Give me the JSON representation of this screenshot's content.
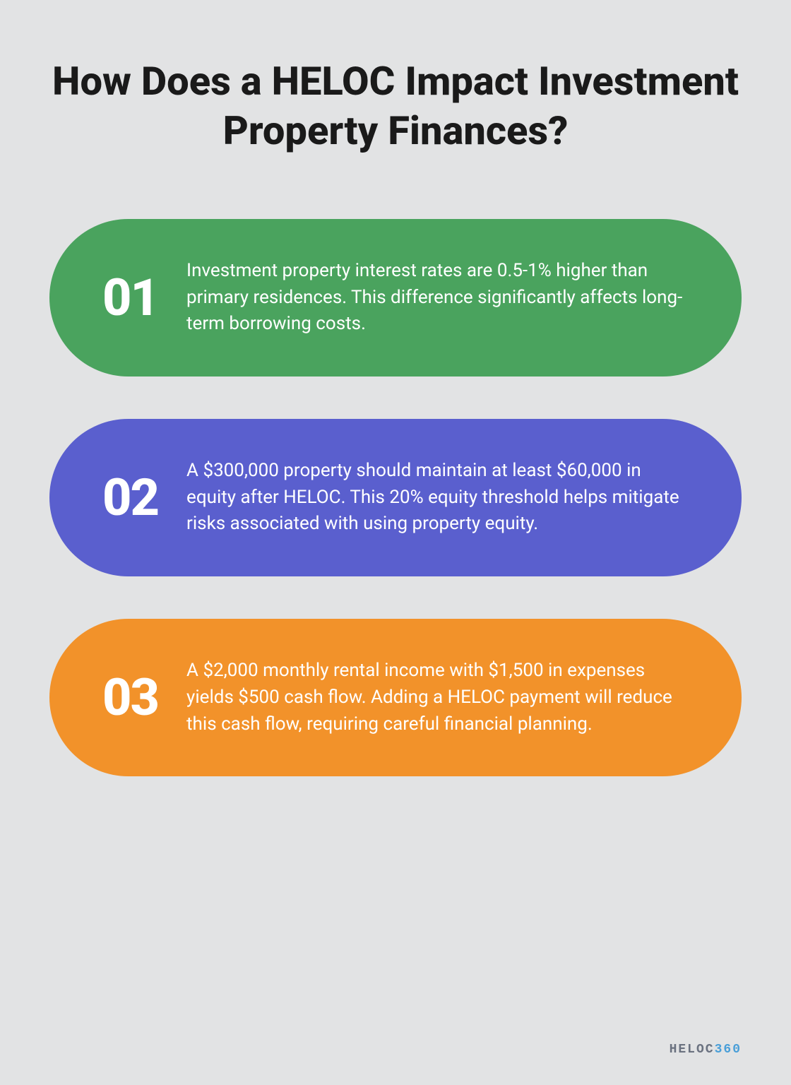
{
  "title": "How Does a HELOC Impact Investment Property Finances?",
  "cards": [
    {
      "number": "01",
      "text": "Investment property interest rates are 0.5-1% higher than primary residences. This difference significantly affects long-term borrowing costs.",
      "background_color": "#4aa35e"
    },
    {
      "number": "02",
      "text": "A $300,000 property should maintain at least $60,000 in equity after HELOC. This 20% equity threshold helps mitigate risks associated with using property equity.",
      "background_color": "#5a5fce"
    },
    {
      "number": "03",
      "text": "A $2,000 monthly rental income with $1,500 in expenses yields $500 cash flow. Adding a HELOC payment will reduce this cash flow, requiring careful financial planning.",
      "background_color": "#f2922a"
    }
  ],
  "logo": {
    "text1": "HELOC",
    "text2": "360"
  },
  "styling": {
    "page_background": "#e2e3e4",
    "title_color": "#1a1a1a",
    "title_fontsize": 56,
    "card_text_color": "#ffffff",
    "card_number_fontsize": 72,
    "card_text_fontsize": 26,
    "card_border_radius": 140,
    "card_gap": 60
  }
}
